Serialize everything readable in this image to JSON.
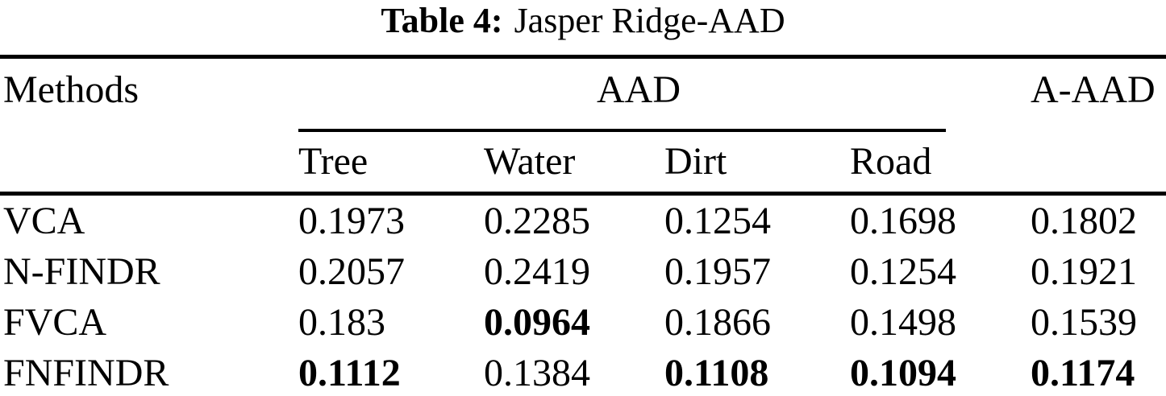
{
  "title": {
    "label": "Table 4:",
    "text": "Jasper Ridge-AAD"
  },
  "table": {
    "col_groups": {
      "methods": "Methods",
      "aad": "AAD",
      "a_aad": "A-AAD"
    },
    "sub_headers": [
      "Tree",
      "Water",
      "Dirt",
      "Road"
    ],
    "rows": [
      {
        "method": "VCA",
        "values": [
          "0.1973",
          "0.2285",
          "0.1254",
          "0.1698",
          "0.1802"
        ],
        "bold": [
          false,
          false,
          false,
          false,
          false
        ]
      },
      {
        "method": "N-FINDR",
        "values": [
          "0.2057",
          "0.2419",
          "0.1957",
          "0.1254",
          "0.1921"
        ],
        "bold": [
          false,
          false,
          false,
          false,
          false
        ]
      },
      {
        "method": "FVCA",
        "values": [
          "0.183",
          "0.0964",
          "0.1866",
          "0.1498",
          "0.1539"
        ],
        "bold": [
          false,
          true,
          false,
          false,
          false
        ]
      },
      {
        "method": "FNFINDR",
        "values": [
          "0.1112",
          "0.1384",
          "0.1108",
          "0.1094",
          "0.1174"
        ],
        "bold": [
          true,
          false,
          true,
          true,
          true
        ]
      }
    ]
  },
  "colors": {
    "text": "#000000",
    "background": "#ffffff",
    "rule": "#000000"
  }
}
